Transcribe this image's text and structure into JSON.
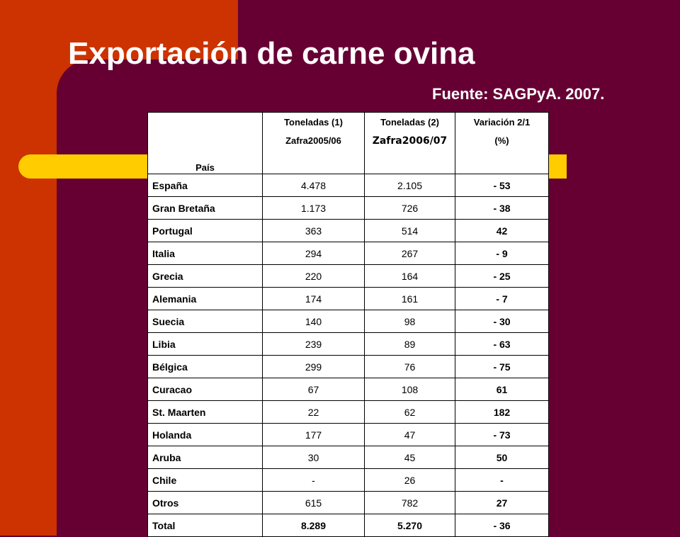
{
  "slide": {
    "title": "Exportación de carne ovina",
    "source": "Fuente: SAGPyA. 2007.",
    "colors": {
      "left_band": "#CC3300",
      "background": "#660033",
      "accent_bar": "#FFCC00",
      "table_bg": "#FFFFFF"
    }
  },
  "table": {
    "headers": {
      "country": "País",
      "col1_line1": "Toneladas (1)",
      "col1_line2": "Zafra2005/06",
      "col2_line1": "Toneladas (2)",
      "col2_line2": "Zafra2006/07",
      "col3_line1": "Variación 2/1",
      "col3_line2": "(%)"
    },
    "rows": [
      {
        "country": "España",
        "t1": "4.478",
        "t2": "2.105",
        "var": "- 53"
      },
      {
        "country": "Gran Bretaña",
        "t1": "1.173",
        "t2": "726",
        "var": "- 38"
      },
      {
        "country": "Portugal",
        "t1": "363",
        "t2": "514",
        "var": "42"
      },
      {
        "country": "Italia",
        "t1": "294",
        "t2": "267",
        "var": "- 9"
      },
      {
        "country": "Grecia",
        "t1": "220",
        "t2": "164",
        "var": "- 25"
      },
      {
        "country": "Alemania",
        "t1": "174",
        "t2": "161",
        "var": "- 7"
      },
      {
        "country": "Suecia",
        "t1": "140",
        "t2": "98",
        "var": "- 30"
      },
      {
        "country": "Libia",
        "t1": "239",
        "t2": "89",
        "var": "- 63"
      },
      {
        "country": "Bélgica",
        "t1": "299",
        "t2": "76",
        "var": "- 75"
      },
      {
        "country": "Curacao",
        "t1": "67",
        "t2": "108",
        "var": "61"
      },
      {
        "country": "St. Maarten",
        "t1": "22",
        "t2": "62",
        "var": "182"
      },
      {
        "country": "Holanda",
        "t1": "177",
        "t2": "47",
        "var": "- 73"
      },
      {
        "country": "Aruba",
        "t1": "30",
        "t2": "45",
        "var": "50"
      },
      {
        "country": "Chile",
        "t1": "-",
        "t2": "26",
        "var": "-"
      },
      {
        "country": "Otros",
        "t1": "615",
        "t2": "782",
        "var": "27"
      }
    ],
    "total": {
      "country": "Total",
      "t1": "8.289",
      "t2": "5.270",
      "var": "- 36"
    }
  }
}
